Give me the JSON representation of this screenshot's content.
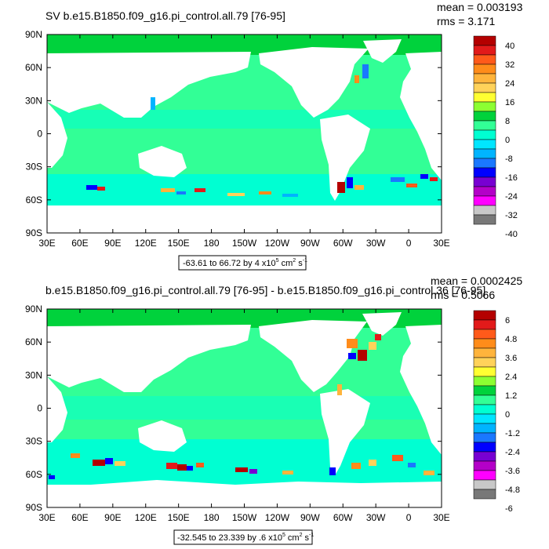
{
  "chart_data": [
    {
      "type": "heatmap",
      "title": "SV b.e15.B1850.f09_g16.pi_control.all.79 [76-95]",
      "stats": {
        "mean": "mean = 0.003193",
        "rms": "rms = 3.171"
      },
      "x_ticks": [
        "30E",
        "60E",
        "90E",
        "120E",
        "150E",
        "180",
        "150W",
        "120W",
        "90W",
        "60W",
        "30W",
        "0",
        "30E"
      ],
      "y_ticks": [
        "90N",
        "60N",
        "30N",
        "0",
        "30S",
        "60S",
        "90S"
      ],
      "xlim": [
        30,
        390
      ],
      "ylim": [
        -90,
        90
      ],
      "range_label": "-63.61 to 66.72 by 4 x10",
      "range_exp": "5",
      "range_units": " cm",
      "range_units_exp": "2",
      "range_units_tail": " s",
      "range_units_tail_exp": "-1",
      "colorbar_labels": [
        "40",
        "32",
        "24",
        "16",
        "8",
        "0",
        "-8",
        "-16",
        "-24",
        "-32",
        "-40"
      ],
      "colorbar_colors": [
        "#b40000",
        "#e21a1a",
        "#ff5a1a",
        "#ff8c1a",
        "#ffb43c",
        "#ffd25a",
        "#ffff32",
        "#8cff32",
        "#00d23c",
        "#32ff96",
        "#00ffd2",
        "#00e6ff",
        "#00b4ff",
        "#1a78ff",
        "#0000ff",
        "#7800d2",
        "#b400c8",
        "#ff00ff",
        "#c8c8c8",
        "#787878"
      ],
      "dominant_value_color": "#32ff96"
    },
    {
      "type": "heatmap",
      "title": "b.e15.B1850.f09_g16.pi_control.all.79 [76-95] - b.e15.B1850.f09_g16.pi_control.36 [76-95]",
      "stats": {
        "mean": "mean = 0.0002425",
        "rms": "rms = 0.5066"
      },
      "x_ticks": [
        "30E",
        "60E",
        "90E",
        "120E",
        "150E",
        "180",
        "150W",
        "120W",
        "90W",
        "60W",
        "30W",
        "0",
        "30E"
      ],
      "y_ticks": [
        "90N",
        "60N",
        "30N",
        "0",
        "30S",
        "60S",
        "90S"
      ],
      "xlim": [
        30,
        390
      ],
      "ylim": [
        -90,
        90
      ],
      "range_label": "-32.545 to 23.339 by .6 x10",
      "range_exp": "5",
      "range_units": " cm",
      "range_units_exp": "2",
      "range_units_tail": " s",
      "range_units_tail_exp": "-1",
      "colorbar_labels": [
        "6",
        "4.8",
        "3.6",
        "2.4",
        "1.2",
        "0",
        "-1.2",
        "-2.4",
        "-3.6",
        "-4.8",
        "-6"
      ],
      "colorbar_colors": [
        "#b40000",
        "#e21a1a",
        "#ff5a1a",
        "#ff8c1a",
        "#ffb43c",
        "#ffd25a",
        "#ffff32",
        "#8cff32",
        "#00d23c",
        "#32ff96",
        "#00ffd2",
        "#00e6ff",
        "#00b4ff",
        "#1a78ff",
        "#0000ff",
        "#7800d2",
        "#b400c8",
        "#ff00ff",
        "#c8c8c8",
        "#787878"
      ],
      "dominant_value_color": "#32ff96"
    }
  ]
}
